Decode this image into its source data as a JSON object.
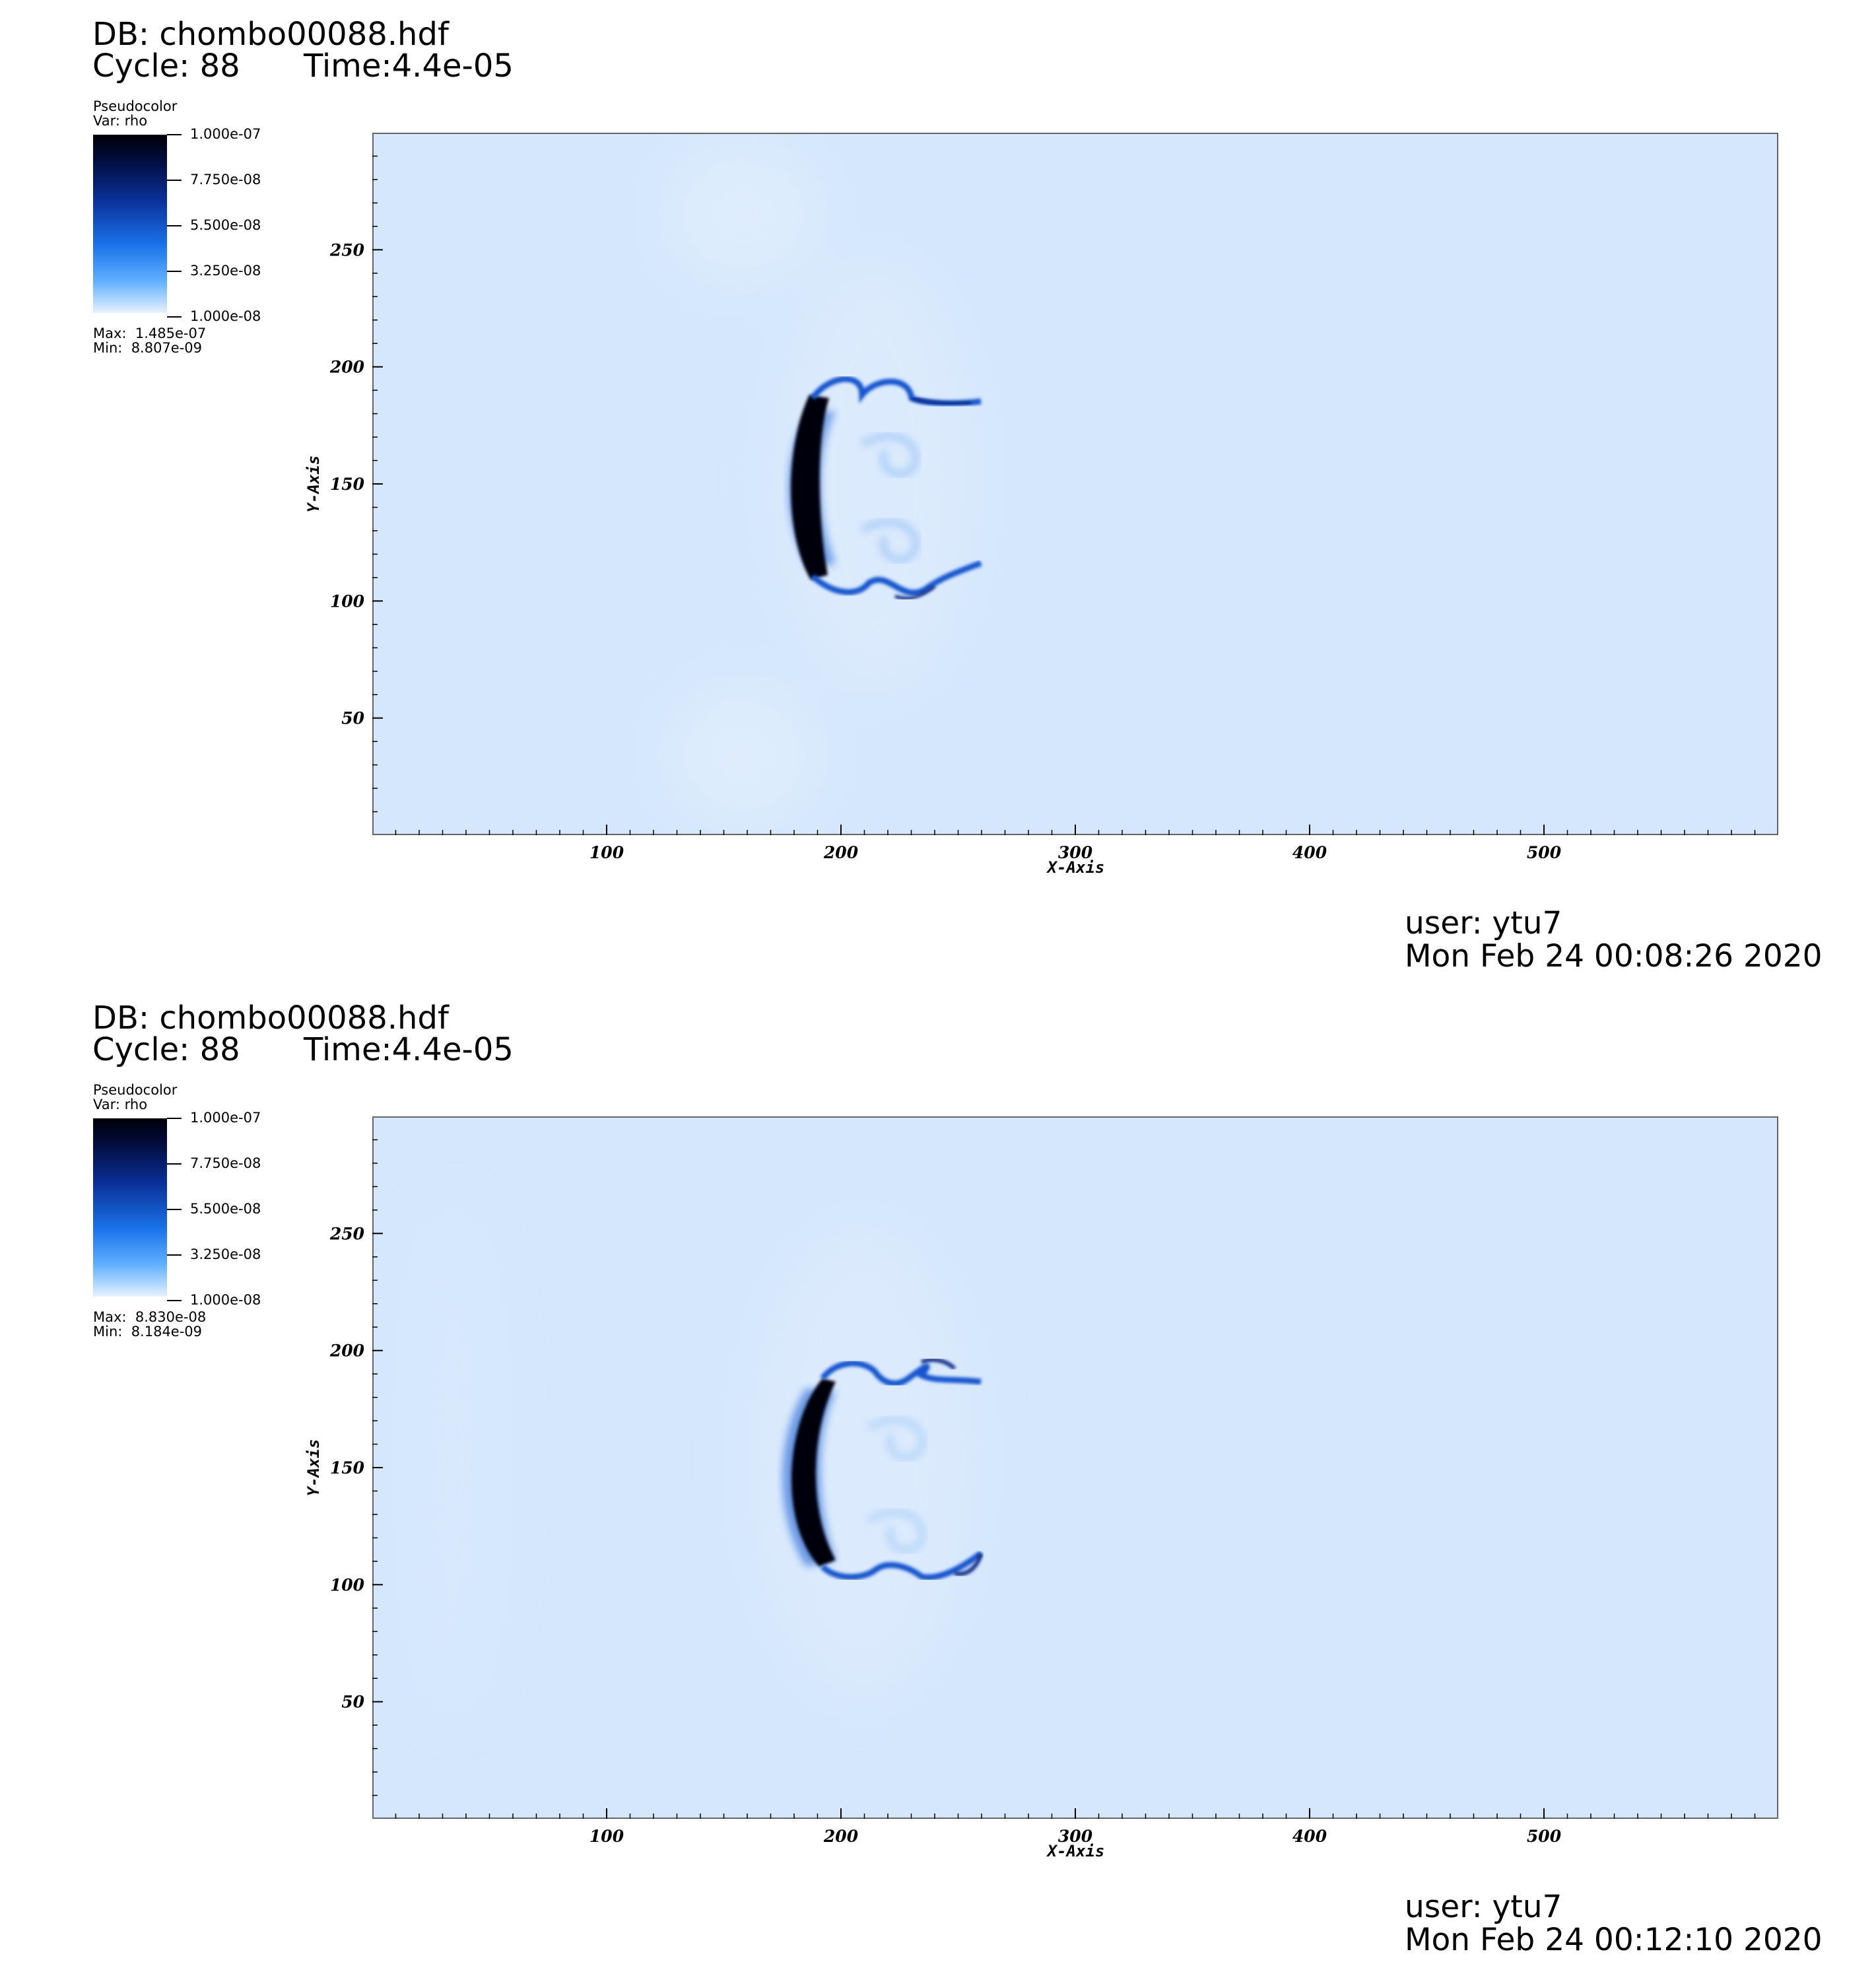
{
  "panels": [
    {
      "db": "DB: chombo00088.hdf",
      "cycle": "Cycle: 88",
      "time": "Time:4.4e-05",
      "legend": {
        "title": "Pseudocolor",
        "var": "Var: rho",
        "ticks": [
          "1.000e-07",
          "7.750e-08",
          "5.500e-08",
          "3.250e-08",
          "1.000e-08"
        ],
        "max": "Max:  1.485e-07",
        "min": "Min:  8.807e-09"
      },
      "user": "user: ytu7",
      "date": "Mon Feb 24 00:08:26 2020"
    },
    {
      "db": "DB: chombo00088.hdf",
      "cycle": "Cycle: 88",
      "time": "Time:4.4e-05",
      "legend": {
        "title": "Pseudocolor",
        "var": "Var: rho",
        "ticks": [
          "1.000e-07",
          "7.750e-08",
          "5.500e-08",
          "3.250e-08",
          "1.000e-08"
        ],
        "max": "Max:  8.830e-08",
        "min": "Min:  8.184e-09"
      },
      "user": "user: ytu7",
      "date": "Mon Feb 24 00:12:10 2020"
    }
  ],
  "chart_data": [
    {
      "type": "heatmap",
      "title": "",
      "xlabel": "X-Axis",
      "ylabel": "Y-Axis",
      "variable": "rho",
      "xlim": [
        0,
        600
      ],
      "ylim": [
        0,
        300
      ],
      "x_ticks": [
        100,
        200,
        300,
        400,
        500
      ],
      "y_ticks": [
        50,
        100,
        150,
        200,
        250
      ],
      "x_tick_labels": [
        "100",
        "200",
        "300",
        "400",
        "500"
      ],
      "y_tick_labels": [
        "50",
        "100",
        "150",
        "200",
        "250"
      ],
      "colorbar": {
        "min": 1e-08,
        "max": 1e-07,
        "ticks": [
          1e-07,
          7.75e-08,
          5.5e-08,
          3.25e-08,
          1e-08
        ]
      },
      "data_range": {
        "max": 1.485e-07,
        "min": 8.807e-09
      },
      "feature": {
        "front_x": 180,
        "rear_x": 260,
        "y_low": 106,
        "y_high": 196,
        "center_y": 150
      }
    },
    {
      "type": "heatmap",
      "title": "",
      "xlabel": "X-Axis",
      "ylabel": "Y-Axis",
      "variable": "rho",
      "xlim": [
        0,
        600
      ],
      "ylim": [
        0,
        300
      ],
      "x_ticks": [
        100,
        200,
        300,
        400,
        500
      ],
      "y_ticks": [
        50,
        100,
        150,
        200,
        250
      ],
      "x_tick_labels": [
        "100",
        "200",
        "300",
        "400",
        "500"
      ],
      "y_tick_labels": [
        "50",
        "100",
        "150",
        "200",
        "250"
      ],
      "colorbar": {
        "min": 1e-08,
        "max": 1e-07,
        "ticks": [
          1e-07,
          7.75e-08,
          5.5e-08,
          3.25e-08,
          1e-08
        ]
      },
      "data_range": {
        "max": 8.83e-08,
        "min": 8.184e-09
      },
      "feature": {
        "front_x": 178,
        "rear_x": 260,
        "y_low": 103,
        "y_high": 197,
        "center_y": 150
      }
    }
  ]
}
